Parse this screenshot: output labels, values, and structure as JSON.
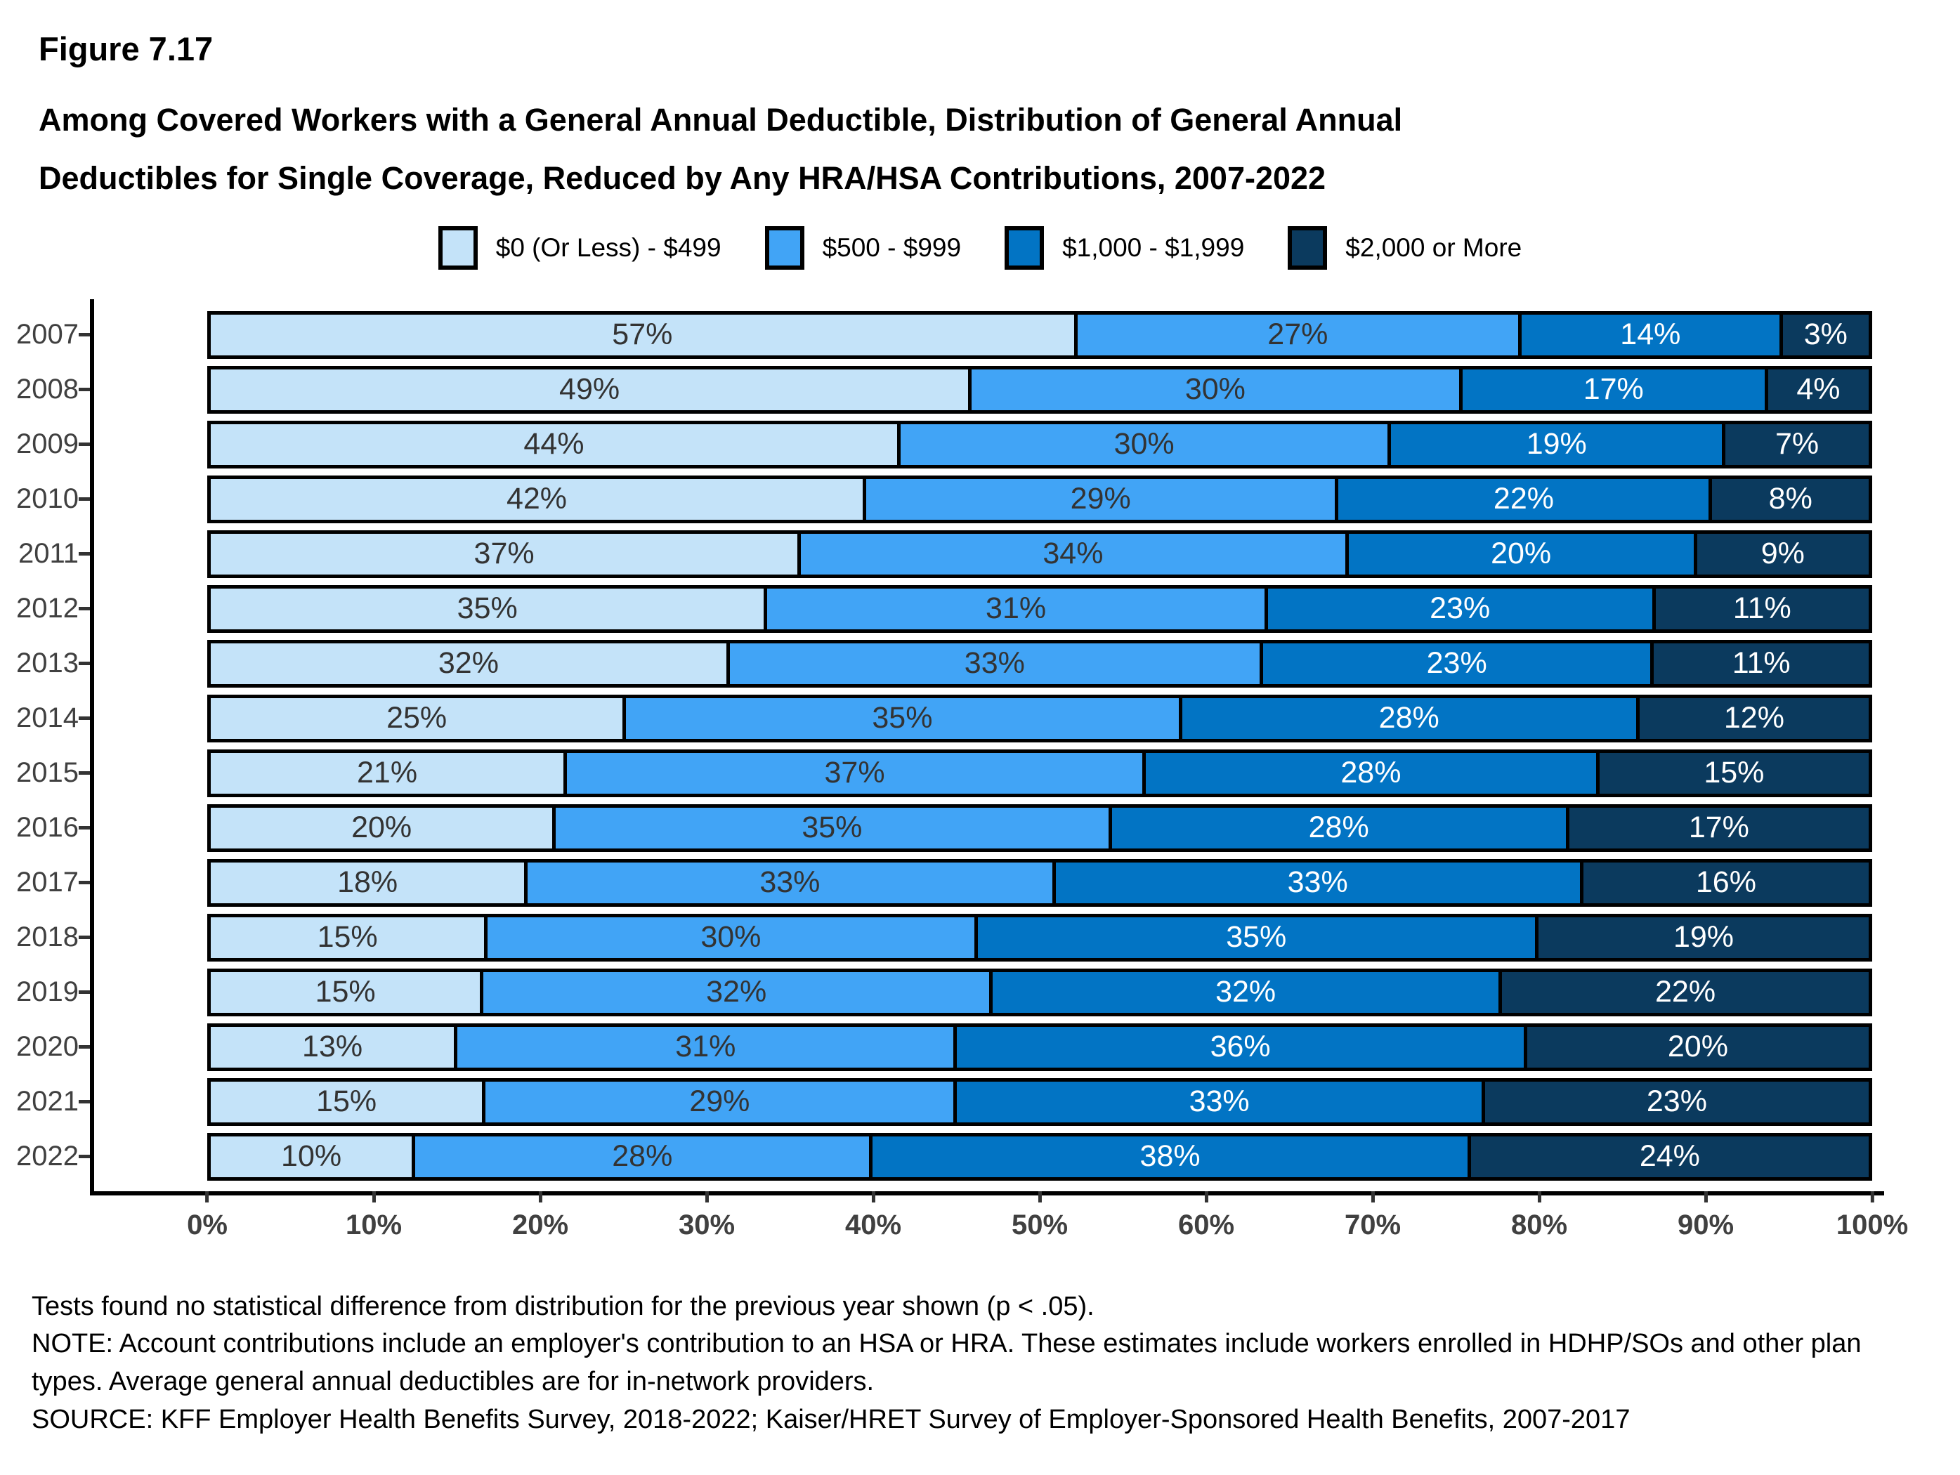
{
  "figure_label": "Figure 7.17",
  "title_line1": "Among Covered Workers with a General Annual Deductible, Distribution of General Annual",
  "title_line2": "Deductibles for Single Coverage, Reduced by Any HRA/HSA Contributions, 2007-2022",
  "colors": {
    "cat_0_499": "#C4E3F9",
    "cat_500_999": "#41A4F6",
    "cat_1000_1999": "#0274C4",
    "cat_2000_more": "#0B3A5E",
    "axis_text": "#404040",
    "axis_line": "#000000"
  },
  "chart_data": {
    "type": "bar",
    "orientation": "horizontal-stacked",
    "title": "Among Covered Workers with a General Annual Deductible, Distribution of General Annual Deductibles for Single Coverage, Reduced by Any HRA/HSA Contributions, 2007-2022",
    "categories": [
      "2007",
      "2008",
      "2009",
      "2010",
      "2011",
      "2012",
      "2013",
      "2014",
      "2015",
      "2016",
      "2017",
      "2018",
      "2019",
      "2020",
      "2021",
      "2022"
    ],
    "series": [
      {
        "name": "$0 (Or Less) - $499",
        "color": "#C4E3F9",
        "label_color": "#333333",
        "values": [
          57,
          49,
          44,
          42,
          37,
          35,
          32,
          25,
          21,
          20,
          18,
          15,
          15,
          13,
          15,
          10
        ]
      },
      {
        "name": "$500 - $999",
        "color": "#41A4F6",
        "label_color": "#333333",
        "values": [
          27,
          30,
          30,
          29,
          34,
          31,
          33,
          35,
          37,
          35,
          33,
          30,
          32,
          31,
          29,
          28
        ]
      },
      {
        "name": "$1,000 - $1,999",
        "color": "#0274C4",
        "label_color": "#FFFFFF",
        "values": [
          14,
          17,
          19,
          22,
          20,
          23,
          23,
          28,
          28,
          28,
          33,
          35,
          32,
          36,
          33,
          38
        ]
      },
      {
        "name": "$2,000 or More",
        "color": "#0B3A5E",
        "label_color": "#FFFFFF",
        "values": [
          3,
          4,
          7,
          8,
          9,
          11,
          11,
          12,
          15,
          17,
          16,
          19,
          22,
          20,
          23,
          24
        ]
      }
    ],
    "x_ticks": [
      "0%",
      "10%",
      "20%",
      "30%",
      "40%",
      "50%",
      "60%",
      "70%",
      "80%",
      "90%",
      "100%"
    ],
    "xlim": [
      0,
      100
    ],
    "value_suffix": "%",
    "grid": false,
    "legend_position": "top"
  },
  "footnotes": [
    "Tests found no statistical difference from distribution for the previous year shown (p < .05).",
    "NOTE: Account contributions include an employer's contribution to an HSA or HRA. These estimates include workers enrolled in HDHP/SOs and other plan types. Average general annual deductibles are for in-network providers.",
    "SOURCE: KFF Employer Health Benefits Survey, 2018-2022; Kaiser/HRET Survey of Employer-Sponsored Health Benefits, 2007-2017"
  ]
}
